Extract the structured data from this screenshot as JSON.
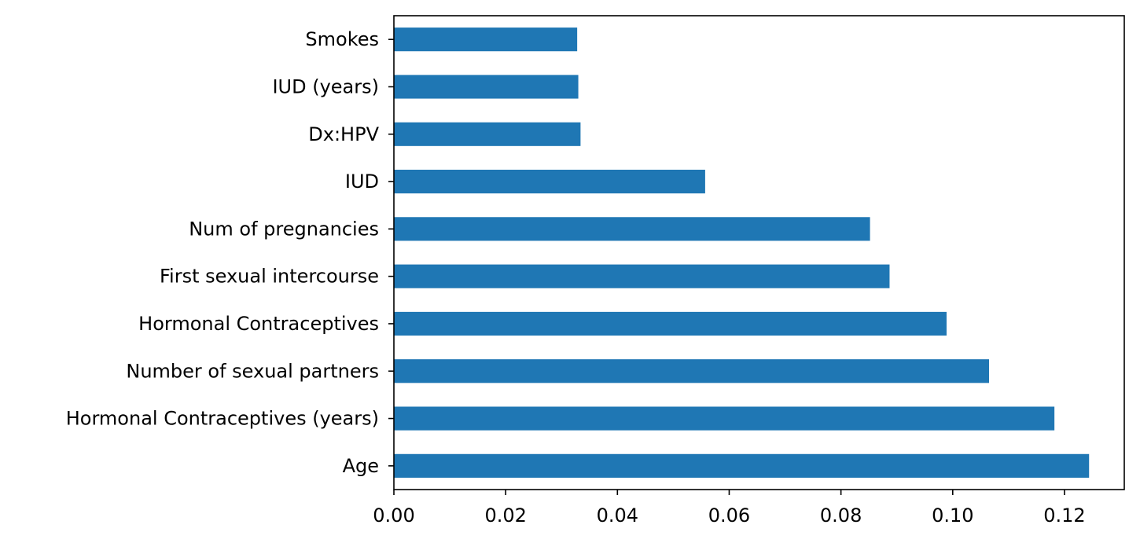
{
  "chart_data": {
    "type": "bar",
    "orientation": "horizontal",
    "categories": [
      "Age",
      "Hormonal Contraceptives (years)",
      "Number of sexual partners",
      "Hormonal Contraceptives",
      "First sexual intercourse",
      "Num of pregnancies",
      "IUD",
      "Dx:HPV",
      "IUD (years)",
      "Smokes"
    ],
    "values": [
      0.1244,
      0.1182,
      0.1065,
      0.0989,
      0.0887,
      0.0852,
      0.0557,
      0.0334,
      0.033,
      0.0328
    ],
    "xlim": [
      0,
      0.1307
    ],
    "x_ticks": [
      "0.00",
      "0.02",
      "0.04",
      "0.06",
      "0.08",
      "0.10",
      "0.12"
    ],
    "x_tick_values": [
      0,
      0.02,
      0.04,
      0.06,
      0.08,
      0.1,
      0.12
    ],
    "title": "",
    "xlabel": "",
    "ylabel": "",
    "grid": false,
    "bar_color": "#1f77b4"
  }
}
